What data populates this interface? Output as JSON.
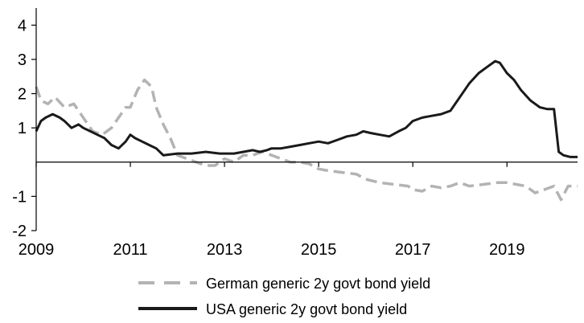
{
  "chart_data": {
    "type": "line",
    "title": "",
    "xlabel": "",
    "ylabel": "",
    "xlim": [
      2009,
      2020.5
    ],
    "ylim": [
      -2,
      4.5
    ],
    "grid": false,
    "legend_position": "bottom",
    "x_ticks": [
      {
        "value": 2009,
        "label": "2009"
      },
      {
        "value": 2011,
        "label": "2011"
      },
      {
        "value": 2013,
        "label": "2013"
      },
      {
        "value": 2015,
        "label": "2015"
      },
      {
        "value": 2017,
        "label": "2017"
      },
      {
        "value": 2019,
        "label": "2019"
      }
    ],
    "y_ticks": [
      {
        "value": 4,
        "label": "4"
      },
      {
        "value": 3,
        "label": "3"
      },
      {
        "value": 2,
        "label": "2"
      },
      {
        "value": 1,
        "label": "1"
      },
      {
        "value": -1,
        "label": "-1"
      },
      {
        "value": -2,
        "label": "-2"
      }
    ],
    "series": [
      {
        "name": "German generic 2y govt bond yield",
        "color": "#b3b3b3",
        "style": "dashed",
        "x": [
          2009.0,
          2009.1,
          2009.25,
          2009.4,
          2009.6,
          2009.8,
          2010.0,
          2010.2,
          2010.4,
          2010.6,
          2010.75,
          2010.9,
          2011.0,
          2011.15,
          2011.3,
          2011.45,
          2011.55,
          2011.7,
          2011.85,
          2012.0,
          2012.2,
          2012.4,
          2012.6,
          2012.8,
          2013.0,
          2013.2,
          2013.4,
          2013.6,
          2013.8,
          2014.0,
          2014.2,
          2014.4,
          2014.6,
          2014.8,
          2015.0,
          2015.2,
          2015.5,
          2015.8,
          2016.0,
          2016.3,
          2016.6,
          2016.9,
          2017.0,
          2017.2,
          2017.4,
          2017.6,
          2017.8,
          2018.0,
          2018.2,
          2018.5,
          2018.8,
          2019.0,
          2019.2,
          2019.4,
          2019.6,
          2019.8,
          2020.0,
          2020.15,
          2020.3,
          2020.5
        ],
        "y": [
          2.2,
          1.8,
          1.7,
          1.9,
          1.6,
          1.7,
          1.3,
          0.9,
          0.8,
          1.0,
          1.3,
          1.6,
          1.6,
          2.1,
          2.4,
          2.2,
          1.6,
          1.1,
          0.7,
          0.2,
          0.1,
          0.0,
          -0.1,
          -0.1,
          0.1,
          0.0,
          0.2,
          0.2,
          0.3,
          0.2,
          0.1,
          0.0,
          0.0,
          -0.05,
          -0.2,
          -0.25,
          -0.3,
          -0.35,
          -0.5,
          -0.6,
          -0.65,
          -0.7,
          -0.8,
          -0.85,
          -0.7,
          -0.75,
          -0.7,
          -0.6,
          -0.7,
          -0.65,
          -0.6,
          -0.6,
          -0.65,
          -0.7,
          -0.9,
          -0.8,
          -0.7,
          -1.1,
          -0.7,
          -0.7
        ]
      },
      {
        "name": "USA generic 2y govt bond yield",
        "color": "#1a1a1a",
        "style": "solid",
        "x": [
          2009.0,
          2009.1,
          2009.2,
          2009.35,
          2009.5,
          2009.6,
          2009.75,
          2009.9,
          2010.0,
          2010.15,
          2010.3,
          2010.45,
          2010.6,
          2010.75,
          2010.9,
          2011.0,
          2011.1,
          2011.25,
          2011.4,
          2011.55,
          2011.7,
          2012.0,
          2012.3,
          2012.6,
          2012.9,
          2013.2,
          2013.4,
          2013.6,
          2013.75,
          2013.9,
          2014.0,
          2014.2,
          2014.4,
          2014.6,
          2014.8,
          2015.0,
          2015.2,
          2015.4,
          2015.6,
          2015.8,
          2015.95,
          2016.1,
          2016.3,
          2016.5,
          2016.7,
          2016.85,
          2017.0,
          2017.2,
          2017.4,
          2017.6,
          2017.8,
          2018.0,
          2018.2,
          2018.4,
          2018.6,
          2018.75,
          2018.85,
          2019.0,
          2019.15,
          2019.3,
          2019.5,
          2019.7,
          2019.85,
          2020.0,
          2020.1,
          2020.2,
          2020.35,
          2020.5
        ],
        "y": [
          0.9,
          1.2,
          1.3,
          1.4,
          1.3,
          1.2,
          1.0,
          1.1,
          1.0,
          0.9,
          0.8,
          0.7,
          0.5,
          0.4,
          0.6,
          0.8,
          0.7,
          0.6,
          0.5,
          0.4,
          0.2,
          0.25,
          0.25,
          0.3,
          0.25,
          0.25,
          0.3,
          0.35,
          0.3,
          0.35,
          0.4,
          0.4,
          0.45,
          0.5,
          0.55,
          0.6,
          0.55,
          0.65,
          0.75,
          0.8,
          0.9,
          0.85,
          0.8,
          0.75,
          0.9,
          1.0,
          1.2,
          1.3,
          1.35,
          1.4,
          1.5,
          1.9,
          2.3,
          2.6,
          2.8,
          2.95,
          2.9,
          2.6,
          2.4,
          2.1,
          1.8,
          1.6,
          1.55,
          1.55,
          0.3,
          0.2,
          0.15,
          0.15
        ]
      }
    ],
    "legend": [
      {
        "label": "German generic 2y govt bond yield",
        "color": "#b3b3b3",
        "style": "dashed"
      },
      {
        "label": "USA generic 2y govt bond yield",
        "color": "#1a1a1a",
        "style": "solid"
      }
    ]
  }
}
